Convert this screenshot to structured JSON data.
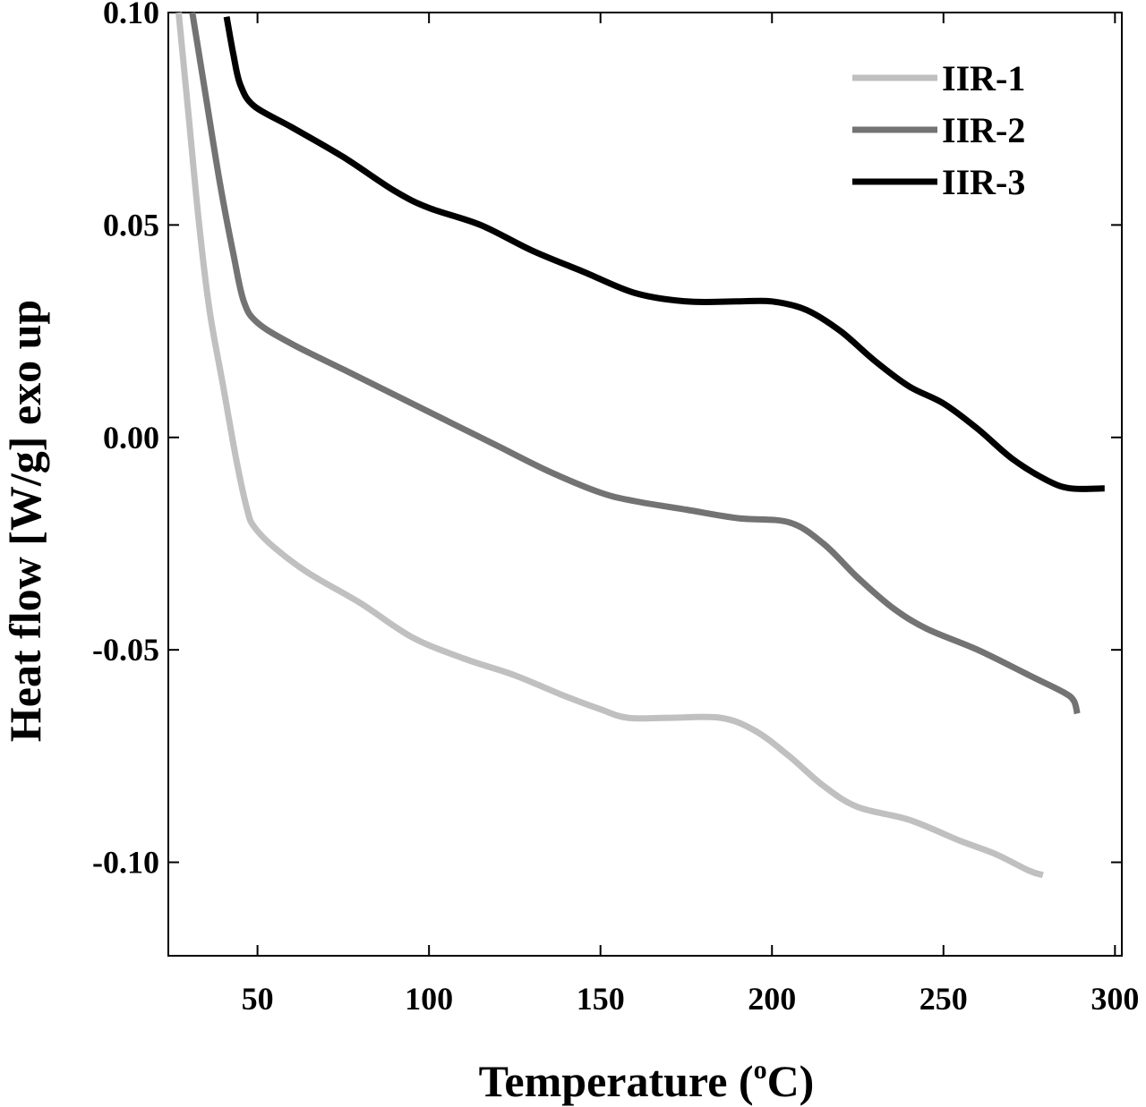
{
  "chart_data": {
    "type": "line",
    "xlabel_main": "Temperature (",
    "xlabel_sup": "o",
    "xlabel_end": "C)",
    "ylabel": "Heat flow [W/g] exo up",
    "xlim": [
      24,
      302
    ],
    "ylim": [
      -0.122,
      0.1
    ],
    "xticks": [
      50,
      100,
      150,
      200,
      250,
      300
    ],
    "yticks": [
      0.1,
      0.05,
      0.0,
      -0.05,
      -0.1
    ],
    "xtick_labels": [
      "50",
      "100",
      "150",
      "200",
      "250",
      "300"
    ],
    "ytick_labels": [
      "0.10",
      "0.05",
      "0.00",
      "-0.05",
      "-0.10"
    ],
    "grid": false,
    "legend_position": "top-right",
    "series": [
      {
        "name": "IIR-1",
        "color": "#c0c0c0",
        "points": [
          [
            27,
            0.1
          ],
          [
            30,
            0.075
          ],
          [
            33,
            0.05
          ],
          [
            36,
            0.03
          ],
          [
            40,
            0.012
          ],
          [
            44,
            -0.006
          ],
          [
            47,
            -0.017
          ],
          [
            49,
            -0.021
          ],
          [
            55,
            -0.026
          ],
          [
            65,
            -0.032
          ],
          [
            80,
            -0.039
          ],
          [
            95,
            -0.047
          ],
          [
            110,
            -0.052
          ],
          [
            125,
            -0.056
          ],
          [
            140,
            -0.061
          ],
          [
            150,
            -0.064
          ],
          [
            158,
            -0.066
          ],
          [
            170,
            -0.066
          ],
          [
            185,
            -0.066
          ],
          [
            195,
            -0.069
          ],
          [
            205,
            -0.075
          ],
          [
            215,
            -0.082
          ],
          [
            225,
            -0.087
          ],
          [
            240,
            -0.09
          ],
          [
            255,
            -0.095
          ],
          [
            265,
            -0.098
          ],
          [
            275,
            -0.102
          ],
          [
            279,
            -0.103
          ]
        ]
      },
      {
        "name": "IIR-2",
        "color": "#737373",
        "points": [
          [
            31,
            0.1
          ],
          [
            35,
            0.08
          ],
          [
            39,
            0.06
          ],
          [
            43,
            0.043
          ],
          [
            46,
            0.032
          ],
          [
            50,
            0.027
          ],
          [
            60,
            0.022
          ],
          [
            75,
            0.016
          ],
          [
            90,
            0.01
          ],
          [
            105,
            0.004
          ],
          [
            120,
            -0.002
          ],
          [
            135,
            -0.008
          ],
          [
            150,
            -0.013
          ],
          [
            160,
            -0.015
          ],
          [
            175,
            -0.017
          ],
          [
            190,
            -0.019
          ],
          [
            205,
            -0.02
          ],
          [
            215,
            -0.025
          ],
          [
            225,
            -0.033
          ],
          [
            235,
            -0.04
          ],
          [
            245,
            -0.045
          ],
          [
            260,
            -0.05
          ],
          [
            275,
            -0.056
          ],
          [
            285,
            -0.06
          ],
          [
            288,
            -0.062
          ],
          [
            289,
            -0.065
          ]
        ]
      },
      {
        "name": "IIR-3",
        "color": "#000000",
        "points": [
          [
            41,
            0.099
          ],
          [
            43,
            0.09
          ],
          [
            45,
            0.083
          ],
          [
            49,
            0.078
          ],
          [
            60,
            0.073
          ],
          [
            75,
            0.066
          ],
          [
            90,
            0.058
          ],
          [
            100,
            0.054
          ],
          [
            115,
            0.05
          ],
          [
            130,
            0.044
          ],
          [
            145,
            0.039
          ],
          [
            160,
            0.034
          ],
          [
            175,
            0.032
          ],
          [
            190,
            0.032
          ],
          [
            200,
            0.032
          ],
          [
            210,
            0.03
          ],
          [
            220,
            0.025
          ],
          [
            230,
            0.018
          ],
          [
            240,
            0.012
          ],
          [
            250,
            0.008
          ],
          [
            260,
            0.002
          ],
          [
            270,
            -0.005
          ],
          [
            280,
            -0.01
          ],
          [
            287,
            -0.012
          ],
          [
            297,
            -0.012
          ]
        ]
      }
    ]
  }
}
